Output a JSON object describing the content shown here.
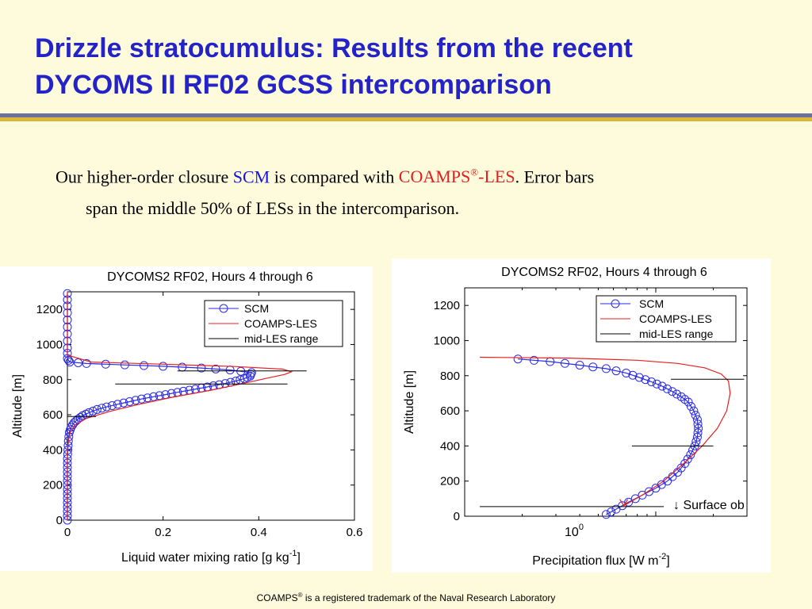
{
  "slide": {
    "title_line1": "Drizzle stratocumulus: Results from the recent",
    "title_line2": "DYCOMS II RF02 GCSS intercomparison",
    "bullet": {
      "part1": "Our higher-order closure ",
      "scm": "SCM",
      "part2": " is compared with ",
      "coamps": "COAMPS",
      "reg": "®",
      "les": "-LES",
      "part3": ".  Error bars",
      "line2": "span the middle 50% of LESs in the intercomparison."
    },
    "footer": {
      "coamps": "COAMPS",
      "reg": "®",
      "text": " is a registered trademark of the Naval Research Laboratory"
    }
  },
  "chart_data": [
    {
      "type": "line",
      "title": "DYCOMS2 RF02, Hours 4 through 6",
      "xlabel": "Liquid water mixing ratio  [g kg",
      "xlabel_sup": "-1",
      "xlabel_tail": "]",
      "ylabel": "Altitude    [m]",
      "xlim": [
        0,
        0.6
      ],
      "ylim": [
        0,
        1300
      ],
      "xticks": [
        "0",
        "0.2",
        "0.4",
        "0.6"
      ],
      "yticks": [
        "0",
        "200",
        "400",
        "600",
        "800",
        "1000",
        "1200"
      ],
      "legend": {
        "position": "top-right",
        "entries": [
          "SCM",
          "COAMPS-LES",
          "mid-LES range"
        ]
      },
      "colors": {
        "scm": "#2a2ae6",
        "les": "#e62020",
        "range": "#000000"
      },
      "series": [
        {
          "name": "SCM",
          "marker": "circle",
          "x": [
            0,
            0,
            0,
            0,
            0,
            0,
            0,
            0,
            0.001,
            0.002,
            0.004,
            0.008,
            0.014,
            0.022,
            0.032,
            0.045,
            0.062,
            0.082,
            0.105,
            0.13,
            0.155,
            0.18,
            0.205,
            0.23,
            0.255,
            0.28,
            0.305,
            0.33,
            0.352,
            0.37,
            0.382,
            0.385,
            0.34,
            0.28,
            0.2,
            0.12,
            0.04,
            0.005,
            0,
            0,
            0,
            0,
            0,
            0
          ],
          "y": [
            0,
            50,
            100,
            150,
            200,
            250,
            300,
            350,
            400,
            450,
            500,
            530,
            555,
            575,
            595,
            612,
            630,
            645,
            660,
            675,
            690,
            703,
            715,
            728,
            740,
            752,
            765,
            778,
            792,
            806,
            820,
            840,
            855,
            866,
            876,
            884,
            892,
            900,
            920,
            980,
            1060,
            1140,
            1220,
            1290
          ]
        },
        {
          "name": "COAMPS-LES",
          "x": [
            0,
            0,
            0,
            0.002,
            0.006,
            0.015,
            0.04,
            0.09,
            0.15,
            0.22,
            0.3,
            0.37,
            0.42,
            0.455,
            0.468,
            0.45,
            0.35,
            0.2,
            0.05,
            0,
            0
          ],
          "y": [
            0,
            200,
            400,
            450,
            500,
            540,
            580,
            620,
            660,
            700,
            740,
            780,
            810,
            830,
            845,
            860,
            875,
            888,
            900,
            940,
            1300
          ]
        },
        {
          "name": "mid-LES range",
          "type": "errorbar",
          "y": [
            850,
            775,
            590
          ],
          "xmin": [
            0.23,
            0.1,
            0.0
          ],
          "xmax": [
            0.5,
            0.46,
            0.06
          ]
        }
      ]
    },
    {
      "type": "line",
      "title": "DYCOMS2 RF02, Hours 4 through 6",
      "xlabel": "Precipitation flux  [W m",
      "xlabel_sup": "-2",
      "xlabel_tail": "]",
      "ylabel": "Altitude    [m]",
      "xscale": "log",
      "xlim": [
        0.1,
        3
      ],
      "ylim": [
        0,
        1300
      ],
      "xtick_base": "10",
      "xtick_exp": "0",
      "yticks": [
        "0",
        "200",
        "400",
        "600",
        "800",
        "1000",
        "1200"
      ],
      "legend": {
        "position": "top-right",
        "entries": [
          "SCM",
          "COAMPS-LES",
          "mid-LES range"
        ]
      },
      "annotation": "↓ Surface ob",
      "colors": {
        "scm": "#2a2ae6",
        "les": "#e62020",
        "range": "#000000"
      },
      "series": [
        {
          "name": "SCM",
          "marker": "circle",
          "x": [
            0.55,
            0.62,
            0.72,
            0.85,
            1.0,
            1.15,
            1.3,
            1.42,
            1.52,
            1.6,
            1.65,
            1.67,
            1.65,
            1.58,
            1.48,
            1.36,
            1.22,
            1.08,
            0.95,
            0.82,
            0.7,
            0.55,
            0.4,
            0.28,
            0.19
          ],
          "y": [
            10,
            40,
            80,
            120,
            160,
            200,
            250,
            300,
            350,
            400,
            450,
            500,
            550,
            600,
            650,
            680,
            710,
            740,
            765,
            790,
            815,
            840,
            860,
            880,
            895
          ]
        },
        {
          "name": "COAMPS-LES",
          "x": [
            0.68,
            0.85,
            1.1,
            1.4,
            1.75,
            2.1,
            2.35,
            2.45,
            2.4,
            2.2,
            1.8,
            1.3,
            0.8,
            0.35,
            0.12
          ],
          "y": [
            60,
            120,
            200,
            300,
            400,
            500,
            600,
            700,
            770,
            810,
            845,
            870,
            888,
            900,
            905
          ]
        },
        {
          "name": "mid-LES range",
          "type": "errorbar",
          "y": [
            780,
            400,
            55
          ],
          "xmin": [
            1.2,
            0.75,
            0.12
          ],
          "xmax": [
            2.9,
            2.0,
            1.1
          ]
        }
      ]
    }
  ]
}
